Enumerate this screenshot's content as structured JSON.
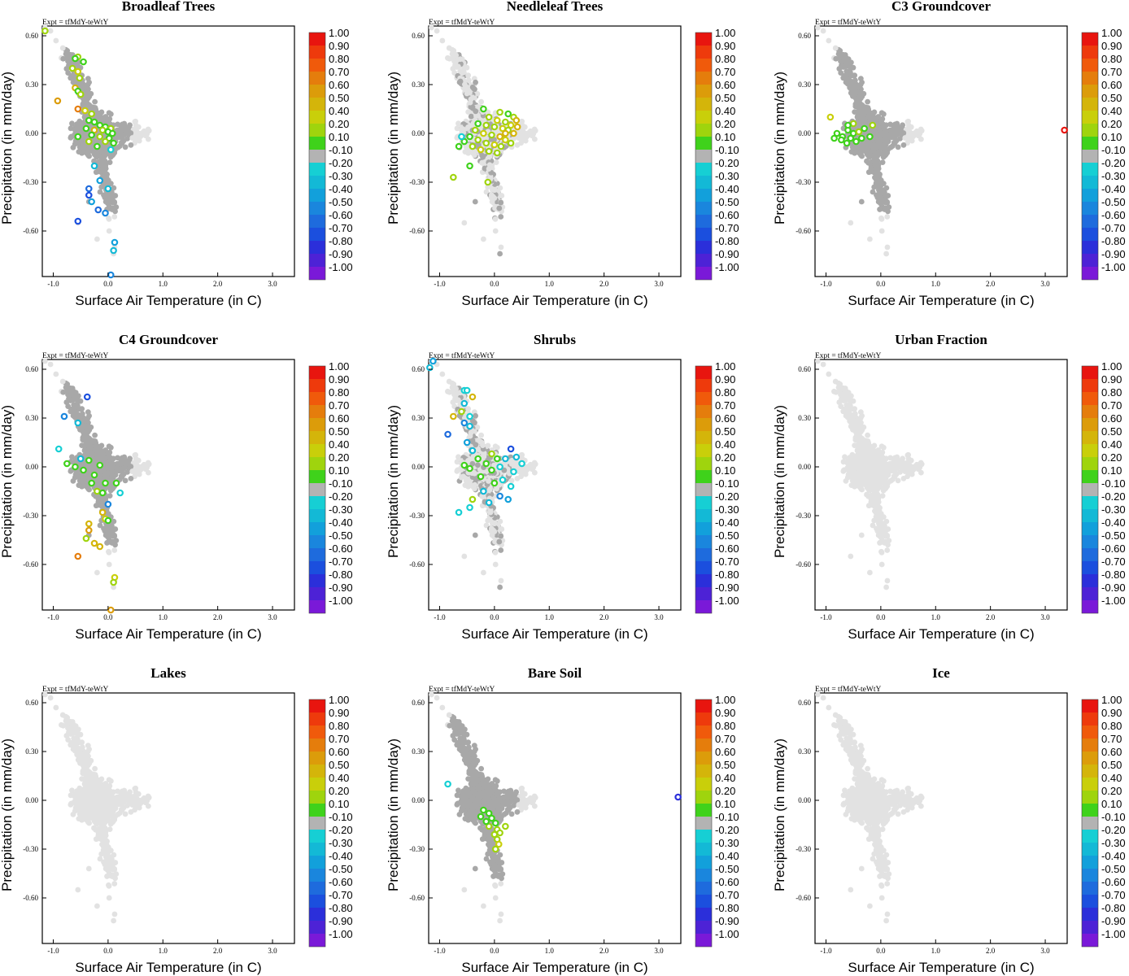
{
  "figure": {
    "expt_label": "Expt = tfMdY-teWtY",
    "colorbar": {
      "labels": [
        "1.00",
        "0.90",
        "0.80",
        "0.70",
        "0.60",
        "0.50",
        "0.40",
        "0.20",
        "0.10",
        "-0.10",
        "-0.20",
        "-0.30",
        "-0.40",
        "-0.50",
        "-0.60",
        "-0.70",
        "-0.80",
        "-0.90",
        "-1.00"
      ],
      "colors": [
        "#e8150f",
        "#ee3a0c",
        "#f05a0b",
        "#e57d0c",
        "#dc9c0a",
        "#d4b50a",
        "#c9cf0a",
        "#9fd40d",
        "#3fd21b",
        "#b3b3b3",
        "#16cfd4",
        "#13b9d6",
        "#12a0db",
        "#1a86dd",
        "#1e6bdd",
        "#1b4fde",
        "#2b2fda",
        "#4d22d6",
        "#7a19d8"
      ]
    },
    "neutral_colors": {
      "light": "#e2e2e2",
      "dark": "#a8a8a8"
    }
  },
  "chart_data": [
    {
      "type": "scatter",
      "title": "Broadleaf Trees",
      "xlabel": "Surface Air Temperature (in C)",
      "ylabel": "Precipitation (in mm/day)",
      "xlim": [
        -1.2,
        3.4
      ],
      "ylim": [
        -0.88,
        0.66
      ],
      "xticks": [
        -1.0,
        0.0,
        1.0,
        2.0,
        3.0
      ],
      "xtick_labels": [
        "-1.0",
        "0.0",
        "1.0",
        "2.0",
        "3.0"
      ],
      "yticks": [
        0.6,
        0.3,
        0.0,
        -0.3,
        -0.6
      ],
      "ytick_labels": [
        "0.60",
        "0.30",
        "0.00",
        "-0.30",
        "-0.60"
      ],
      "cloud": "dark",
      "points": [
        [
          -1.15,
          0.63,
          0.3
        ],
        [
          -0.55,
          0.47,
          0.2
        ],
        [
          -0.6,
          0.46,
          0.1
        ],
        [
          -0.45,
          0.44,
          0.1
        ],
        [
          -0.65,
          0.4,
          0.3
        ],
        [
          -0.55,
          0.38,
          0.4
        ],
        [
          -0.52,
          0.34,
          0.3
        ],
        [
          -0.6,
          0.28,
          0.5
        ],
        [
          -0.55,
          0.26,
          0.1
        ],
        [
          -0.5,
          0.24,
          0.2
        ],
        [
          -0.92,
          0.2,
          0.6
        ],
        [
          -0.55,
          0.15,
          0.7
        ],
        [
          -0.42,
          0.14,
          0.4
        ],
        [
          -0.3,
          0.12,
          0.2
        ],
        [
          -0.35,
          0.08,
          0.1
        ],
        [
          -0.25,
          0.07,
          0.1
        ],
        [
          -0.15,
          0.05,
          0.1
        ],
        [
          -0.05,
          0.04,
          0.1
        ],
        [
          0.05,
          0.03,
          0.2
        ],
        [
          -0.4,
          0.03,
          0.1
        ],
        [
          -0.25,
          0.02,
          0.5
        ],
        [
          -0.1,
          0.02,
          0.2
        ],
        [
          0.0,
          0.01,
          0.1
        ],
        [
          0.08,
          0.0,
          0.1
        ],
        [
          -0.3,
          -0.01,
          0.1
        ],
        [
          -0.55,
          -0.02,
          0.1
        ],
        [
          -0.15,
          -0.02,
          0.2
        ],
        [
          0.02,
          -0.03,
          0.1
        ],
        [
          -0.35,
          -0.05,
          0.2
        ],
        [
          -0.05,
          -0.05,
          0.3
        ],
        [
          -0.2,
          -0.08,
          0.1
        ],
        [
          0.1,
          -0.06,
          0.1
        ],
        [
          0.05,
          -0.1,
          -0.2
        ],
        [
          -0.25,
          -0.2,
          -0.3
        ],
        [
          -0.15,
          -0.29,
          -0.4
        ],
        [
          -0.35,
          -0.34,
          -0.6
        ],
        [
          0.0,
          -0.34,
          -0.3
        ],
        [
          -0.35,
          -0.38,
          -0.7
        ],
        [
          -0.3,
          -0.42,
          -0.4
        ],
        [
          -0.18,
          -0.47,
          -0.6
        ],
        [
          -0.05,
          -0.49,
          -0.5
        ],
        [
          -0.55,
          -0.54,
          -0.7
        ],
        [
          0.12,
          -0.67,
          -0.4
        ],
        [
          0.1,
          -0.72,
          -0.3
        ],
        [
          0.05,
          -0.87,
          -0.5
        ]
      ]
    },
    {
      "type": "scatter",
      "title": "Needleleaf Trees",
      "xlabel": "Surface Air Temperature (in C)",
      "ylabel": "Precipitation (in mm/day)",
      "xlim": [
        -1.2,
        3.4
      ],
      "ylim": [
        -0.88,
        0.66
      ],
      "xticks": [
        -1.0,
        0.0,
        1.0,
        2.0,
        3.0
      ],
      "xtick_labels": [
        "-1.0",
        "0.0",
        "1.0",
        "2.0",
        "3.0"
      ],
      "yticks": [
        0.6,
        0.3,
        0.0,
        -0.3,
        -0.6
      ],
      "ytick_labels": [
        "0.60",
        "0.30",
        "0.00",
        "-0.30",
        "-0.60"
      ],
      "cloud": "mixed",
      "points": [
        [
          -0.2,
          0.15,
          0.1
        ],
        [
          0.1,
          0.13,
          0.2
        ],
        [
          0.25,
          0.12,
          0.1
        ],
        [
          0.35,
          0.1,
          0.3
        ],
        [
          0.4,
          0.08,
          0.5
        ],
        [
          -0.1,
          0.1,
          0.2
        ],
        [
          0.05,
          0.08,
          0.4
        ],
        [
          0.2,
          0.07,
          0.3
        ],
        [
          0.3,
          0.05,
          0.4
        ],
        [
          0.42,
          0.04,
          0.5
        ],
        [
          -0.3,
          0.06,
          0.1
        ],
        [
          -0.15,
          0.05,
          0.3
        ],
        [
          0.0,
          0.04,
          0.2
        ],
        [
          0.15,
          0.03,
          0.4
        ],
        [
          0.25,
          0.02,
          0.3
        ],
        [
          0.35,
          0.0,
          0.5
        ],
        [
          -0.35,
          0.02,
          0.2
        ],
        [
          -0.2,
          0.0,
          0.4
        ],
        [
          -0.05,
          -0.01,
          0.3
        ],
        [
          0.1,
          -0.02,
          0.5
        ],
        [
          0.2,
          -0.04,
          0.4
        ],
        [
          0.3,
          -0.06,
          0.3
        ],
        [
          -0.45,
          -0.02,
          0.1
        ],
        [
          -0.3,
          -0.04,
          0.3
        ],
        [
          -0.15,
          -0.06,
          0.2
        ],
        [
          0.0,
          -0.07,
          0.4
        ],
        [
          0.12,
          -0.08,
          0.3
        ],
        [
          -0.55,
          -0.05,
          0.1
        ],
        [
          -0.4,
          -0.08,
          0.2
        ],
        [
          -0.25,
          -0.1,
          0.4
        ],
        [
          -0.1,
          -0.11,
          0.3
        ],
        [
          0.05,
          -0.12,
          0.2
        ],
        [
          -0.65,
          -0.08,
          0.1
        ],
        [
          -0.6,
          -0.02,
          -0.2
        ],
        [
          -0.45,
          -0.2,
          0.1
        ],
        [
          -0.75,
          -0.27,
          0.3
        ],
        [
          -0.12,
          -0.3,
          0.2
        ],
        [
          0.2,
          0.0,
          0.5
        ]
      ]
    },
    {
      "type": "scatter",
      "title": "C3 Groundcover",
      "xlabel": "Surface Air Temperature (in C)",
      "ylabel": "Precipitation (in mm/day)",
      "xlim": [
        -1.2,
        3.4
      ],
      "ylim": [
        -0.88,
        0.66
      ],
      "xticks": [
        -1.0,
        0.0,
        1.0,
        2.0,
        3.0
      ],
      "xtick_labels": [
        "-1.0",
        "0.0",
        "1.0",
        "2.0",
        "3.0"
      ],
      "yticks": [
        0.6,
        0.3,
        0.0,
        -0.3,
        -0.6
      ],
      "ytick_labels": [
        "0.60",
        "0.30",
        "0.00",
        "-0.30",
        "-0.60"
      ],
      "cloud": "dark",
      "points": [
        [
          -0.92,
          0.1,
          0.4
        ],
        [
          -0.8,
          0.0,
          0.1
        ],
        [
          -0.7,
          -0.02,
          0.1
        ],
        [
          -0.6,
          0.02,
          0.1
        ],
        [
          -0.55,
          -0.03,
          0.1
        ],
        [
          -0.5,
          0.0,
          0.1
        ],
        [
          -0.45,
          -0.05,
          0.1
        ],
        [
          -0.4,
          0.01,
          0.2
        ],
        [
          -0.35,
          -0.03,
          0.1
        ],
        [
          -0.3,
          0.03,
          0.1
        ],
        [
          -0.62,
          -0.06,
          0.1
        ],
        [
          -0.5,
          0.06,
          0.2
        ],
        [
          -0.15,
          0.05,
          0.2
        ],
        [
          -0.72,
          -0.04,
          0.1
        ],
        [
          -0.2,
          -0.02,
          0.1
        ],
        [
          -0.85,
          -0.03,
          0.1
        ],
        [
          -0.6,
          0.05,
          0.1
        ],
        [
          3.35,
          0.02,
          1.0
        ]
      ]
    },
    {
      "type": "scatter",
      "title": "C4 Groundcover",
      "xlabel": "Surface Air Temperature (in C)",
      "ylabel": "Precipitation (in mm/day)",
      "xlim": [
        -1.2,
        3.4
      ],
      "ylim": [
        -0.88,
        0.66
      ],
      "xticks": [
        -1.0,
        0.0,
        1.0,
        2.0,
        3.0
      ],
      "xtick_labels": [
        "-1.0",
        "0.0",
        "1.0",
        "2.0",
        "3.0"
      ],
      "yticks": [
        0.6,
        0.3,
        0.0,
        -0.3,
        -0.6
      ],
      "ytick_labels": [
        "0.60",
        "0.30",
        "0.00",
        "-0.30",
        "-0.60"
      ],
      "cloud": "dark",
      "points": [
        [
          -0.38,
          0.43,
          -0.7
        ],
        [
          -0.8,
          0.31,
          -0.5
        ],
        [
          -0.55,
          0.27,
          -0.3
        ],
        [
          -0.9,
          0.11,
          -0.2
        ],
        [
          -0.75,
          0.02,
          0.1
        ],
        [
          -0.6,
          0.0,
          0.1
        ],
        [
          -0.45,
          -0.02,
          0.1
        ],
        [
          -0.35,
          0.04,
          0.1
        ],
        [
          -0.25,
          -0.05,
          0.1
        ],
        [
          -0.15,
          0.01,
          0.1
        ],
        [
          -0.3,
          -0.1,
          0.1
        ],
        [
          -0.2,
          -0.15,
          0.2
        ],
        [
          -0.1,
          -0.16,
          0.1
        ],
        [
          -0.05,
          -0.1,
          0.1
        ],
        [
          0.15,
          -0.1,
          0.1
        ],
        [
          0.22,
          -0.16,
          -0.2
        ],
        [
          0.0,
          -0.23,
          -0.5
        ],
        [
          -0.1,
          -0.28,
          0.5
        ],
        [
          -0.05,
          -0.32,
          0.4
        ],
        [
          -0.35,
          -0.35,
          0.5
        ],
        [
          -0.35,
          -0.39,
          0.6
        ],
        [
          -0.4,
          -0.44,
          0.2
        ],
        [
          -0.25,
          -0.47,
          0.5
        ],
        [
          -0.15,
          -0.49,
          0.5
        ],
        [
          -0.55,
          -0.55,
          0.7
        ],
        [
          0.12,
          -0.68,
          0.4
        ],
        [
          0.1,
          -0.71,
          0.3
        ],
        [
          0.05,
          -0.88,
          0.6
        ],
        [
          0.0,
          -0.33,
          0.1
        ],
        [
          -0.5,
          0.05,
          -0.3
        ]
      ]
    },
    {
      "type": "scatter",
      "title": "Shrubs",
      "xlabel": "Surface Air Temperature (in C)",
      "ylabel": "Precipitation (in mm/day)",
      "xlim": [
        -1.2,
        3.4
      ],
      "ylim": [
        -0.88,
        0.66
      ],
      "xticks": [
        -1.0,
        0.0,
        1.0,
        2.0,
        3.0
      ],
      "xtick_labels": [
        "-1.0",
        "0.0",
        "1.0",
        "2.0",
        "3.0"
      ],
      "yticks": [
        0.6,
        0.3,
        0.0,
        -0.3,
        -0.6
      ],
      "ytick_labels": [
        "0.60",
        "0.30",
        "0.00",
        "-0.30",
        "-0.60"
      ],
      "cloud": "mixed",
      "points": [
        [
          -1.12,
          0.65,
          -0.4
        ],
        [
          -1.18,
          0.61,
          -0.3
        ],
        [
          -0.55,
          0.47,
          -0.2
        ],
        [
          -0.5,
          0.47,
          -0.2
        ],
        [
          -0.4,
          0.43,
          0.5
        ],
        [
          -0.55,
          0.39,
          -0.3
        ],
        [
          -0.6,
          0.34,
          0.2
        ],
        [
          -0.45,
          0.31,
          -0.2
        ],
        [
          -0.75,
          0.31,
          0.5
        ],
        [
          -0.55,
          0.27,
          -0.5
        ],
        [
          -0.45,
          0.25,
          -0.3
        ],
        [
          -0.85,
          0.2,
          -0.6
        ],
        [
          -0.5,
          0.15,
          -0.4
        ],
        [
          0.3,
          0.11,
          -0.7
        ],
        [
          0.4,
          0.06,
          -0.3
        ],
        [
          -0.4,
          0.1,
          -0.3
        ],
        [
          0.5,
          0.02,
          -0.2
        ],
        [
          0.2,
          0.05,
          -0.3
        ],
        [
          0.1,
          0.0,
          -0.2
        ],
        [
          0.35,
          -0.03,
          -0.2
        ],
        [
          -0.3,
          0.05,
          0.1
        ],
        [
          -0.15,
          0.02,
          0.1
        ],
        [
          -0.05,
          -0.02,
          0.1
        ],
        [
          -0.25,
          -0.06,
          0.1
        ],
        [
          -0.45,
          -0.01,
          0.1
        ],
        [
          -0.55,
          0.01,
          0.1
        ],
        [
          0.0,
          -0.1,
          0.1
        ],
        [
          0.15,
          -0.08,
          -0.2
        ],
        [
          0.3,
          -0.12,
          -0.2
        ],
        [
          -0.2,
          -0.15,
          -0.3
        ],
        [
          0.1,
          -0.18,
          -0.5
        ],
        [
          -0.4,
          -0.2,
          0.3
        ],
        [
          -0.1,
          -0.22,
          -0.3
        ],
        [
          -0.45,
          -0.25,
          -0.2
        ],
        [
          -0.65,
          -0.28,
          -0.2
        ],
        [
          0.25,
          -0.2,
          -0.4
        ],
        [
          -0.05,
          0.08,
          0.2
        ],
        [
          0.05,
          0.05,
          0.1
        ]
      ]
    },
    {
      "type": "scatter",
      "title": "Urban Fraction",
      "xlabel": "Surface Air Temperature (in C)",
      "ylabel": "Precipitation (in mm/day)",
      "xlim": [
        -1.2,
        3.4
      ],
      "ylim": [
        -0.88,
        0.66
      ],
      "xticks": [
        -1.0,
        0.0,
        1.0,
        2.0,
        3.0
      ],
      "xtick_labels": [
        "-1.0",
        "0.0",
        "1.0",
        "2.0",
        "3.0"
      ],
      "yticks": [
        0.6,
        0.3,
        0.0,
        -0.3,
        -0.6
      ],
      "ytick_labels": [
        "0.60",
        "0.30",
        "0.00",
        "-0.30",
        "-0.60"
      ],
      "cloud": "light",
      "points": []
    },
    {
      "type": "scatter",
      "title": "Lakes",
      "xlabel": "Surface Air Temperature (in C)",
      "ylabel": "Precipitation (in mm/day)",
      "xlim": [
        -1.2,
        3.4
      ],
      "ylim": [
        -0.88,
        0.66
      ],
      "xticks": [
        -1.0,
        0.0,
        1.0,
        2.0,
        3.0
      ],
      "xtick_labels": [
        "-1.0",
        "0.0",
        "1.0",
        "2.0",
        "3.0"
      ],
      "yticks": [
        0.6,
        0.3,
        0.0,
        -0.3,
        -0.6
      ],
      "ytick_labels": [
        "0.60",
        "0.30",
        "0.00",
        "-0.30",
        "-0.60"
      ],
      "cloud": "light",
      "points": []
    },
    {
      "type": "scatter",
      "title": "Bare Soil",
      "xlabel": "Surface Air Temperature (in C)",
      "ylabel": "Precipitation (in mm/day)",
      "xlim": [
        -1.2,
        3.4
      ],
      "ylim": [
        -0.88,
        0.66
      ],
      "xticks": [
        -1.0,
        0.0,
        1.0,
        2.0,
        3.0
      ],
      "xtick_labels": [
        "-1.0",
        "0.0",
        "1.0",
        "2.0",
        "3.0"
      ],
      "yticks": [
        0.6,
        0.3,
        0.0,
        -0.3,
        -0.6
      ],
      "ytick_labels": [
        "0.60",
        "0.30",
        "0.00",
        "-0.30",
        "-0.60"
      ],
      "cloud": "dark",
      "points": [
        [
          -0.85,
          0.1,
          -0.2
        ],
        [
          -0.2,
          -0.06,
          0.1
        ],
        [
          -0.1,
          -0.08,
          0.1
        ],
        [
          -0.25,
          -0.1,
          0.1
        ],
        [
          -0.05,
          -0.11,
          0.1
        ],
        [
          0.02,
          -0.14,
          0.1
        ],
        [
          -0.1,
          -0.16,
          0.2
        ],
        [
          0.05,
          -0.18,
          0.2
        ],
        [
          0.0,
          -0.21,
          0.3
        ],
        [
          0.05,
          -0.24,
          0.3
        ],
        [
          0.08,
          -0.27,
          0.4
        ],
        [
          0.02,
          -0.3,
          0.3
        ],
        [
          0.2,
          -0.16,
          0.3
        ],
        [
          -0.15,
          -0.13,
          0.1
        ],
        [
          0.1,
          -0.2,
          0.2
        ],
        [
          3.35,
          0.02,
          -0.8
        ]
      ]
    },
    {
      "type": "scatter",
      "title": "Ice",
      "xlabel": "Surface Air Temperature (in C)",
      "ylabel": "Precipitation (in mm/day)",
      "xlim": [
        -1.2,
        3.4
      ],
      "ylim": [
        -0.88,
        0.66
      ],
      "xticks": [
        -1.0,
        0.0,
        1.0,
        2.0,
        3.0
      ],
      "xtick_labels": [
        "-1.0",
        "0.0",
        "1.0",
        "2.0",
        "3.0"
      ],
      "yticks": [
        0.6,
        0.3,
        0.0,
        -0.3,
        -0.6
      ],
      "ytick_labels": [
        "0.60",
        "0.30",
        "0.00",
        "-0.30",
        "-0.60"
      ],
      "cloud": "light",
      "points": []
    }
  ]
}
